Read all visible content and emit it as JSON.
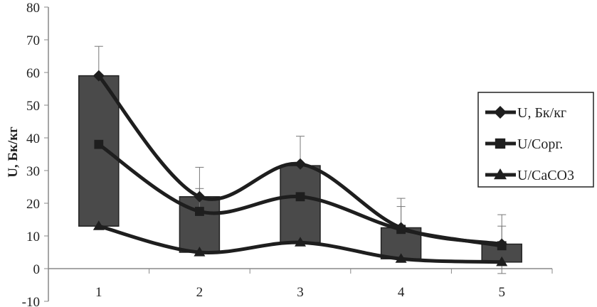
{
  "chart_data": {
    "type": "line",
    "title": "",
    "xlabel": "",
    "ylabel": "U, Бк/кг",
    "categories": [
      "1",
      "2",
      "3",
      "4",
      "5"
    ],
    "ylim": [
      -10,
      80
    ],
    "yticks": [
      -10,
      0,
      10,
      20,
      30,
      40,
      50,
      60,
      70,
      80
    ],
    "grid": false,
    "legend_position": "right",
    "smooth": true,
    "series": [
      {
        "name": "U, Бк/кг",
        "marker": "diamond",
        "values": [
          59,
          22,
          32,
          12.5,
          7.5
        ],
        "error_upper": [
          68,
          31,
          40.5,
          21.5,
          16.5
        ]
      },
      {
        "name": "U/Сорг.",
        "marker": "square",
        "values": [
          38,
          17.5,
          22,
          12,
          7
        ],
        "error_upper": [
          null,
          24.5,
          null,
          19,
          13
        ]
      },
      {
        "name": "U/CaCO3",
        "marker": "triangle",
        "values": [
          13,
          5,
          8,
          3,
          2
        ],
        "error_lower": [
          null,
          null,
          null,
          null,
          -1.5
        ]
      }
    ],
    "up_down_bars": {
      "low": [
        13,
        5,
        8,
        3,
        2
      ],
      "high": [
        59,
        22,
        31.5,
        12.5,
        7.5
      ],
      "color": "#4a4a4a"
    },
    "line_color": "#1e1e1e"
  }
}
